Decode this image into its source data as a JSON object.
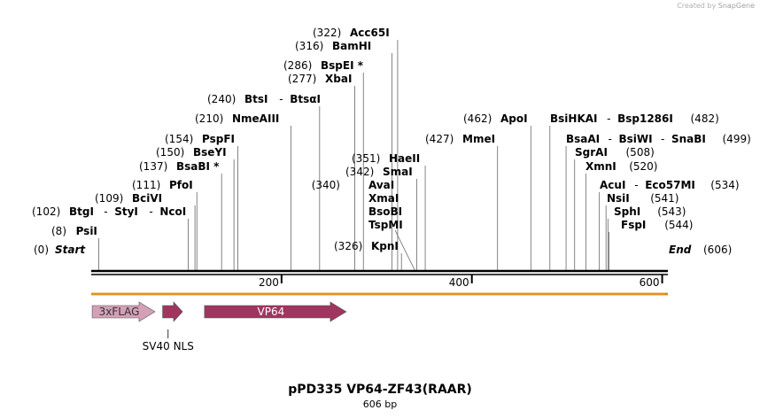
{
  "credit": {
    "prefix": "Created by",
    "brand": "SnapGene"
  },
  "title": "pPD335 VP64-ZF43(RAAR)",
  "subtitle": "606 bp",
  "sequence": {
    "start_label": "Start",
    "end_label": "End",
    "start_pos": "(0)",
    "end_pos": "(606)",
    "length": 606
  },
  "ticks": [
    {
      "value": 200,
      "label": "200"
    },
    {
      "value": 400,
      "label": "400"
    },
    {
      "value": 600,
      "label": "600"
    }
  ],
  "sites": [
    {
      "pos": 8,
      "pos_label": "(8)",
      "names": [
        "PsiI"
      ]
    },
    {
      "pos": 102,
      "pos_label": "(102)",
      "names": [
        "BtgI",
        "StyI",
        "NcoI"
      ]
    },
    {
      "pos": 109,
      "pos_label": "(109)",
      "names": [
        "BciVI"
      ]
    },
    {
      "pos": 111,
      "pos_label": "(111)",
      "names": [
        "PfoI"
      ]
    },
    {
      "pos": 137,
      "pos_label": "(137)",
      "names": [
        "BsaBI *"
      ]
    },
    {
      "pos": 150,
      "pos_label": "(150)",
      "names": [
        "BseYI"
      ]
    },
    {
      "pos": 154,
      "pos_label": "(154)",
      "names": [
        "PspFI"
      ]
    },
    {
      "pos": 210,
      "pos_label": "(210)",
      "names": [
        "NmeAIII"
      ]
    },
    {
      "pos": 240,
      "pos_label": "(240)",
      "names": [
        "BtsI",
        "BtsαI"
      ]
    },
    {
      "pos": 277,
      "pos_label": "(277)",
      "names": [
        "XbaI"
      ]
    },
    {
      "pos": 286,
      "pos_label": "(286)",
      "names": [
        "BspEI *"
      ]
    },
    {
      "pos": 316,
      "pos_label": "(316)",
      "names": [
        "BamHI"
      ]
    },
    {
      "pos": 322,
      "pos_label": "(322)",
      "names": [
        "Acc65I"
      ]
    },
    {
      "pos": 326,
      "pos_label": "(326)",
      "names": [
        "KpnI"
      ]
    },
    {
      "pos": 340,
      "pos_label": "(340)",
      "names": [
        "AvaI",
        "XmaI",
        "BsoBI",
        "TspMI"
      ]
    },
    {
      "pos": 342,
      "pos_label": "(342)",
      "names": [
        "SmaI"
      ]
    },
    {
      "pos": 351,
      "pos_label": "(351)",
      "names": [
        "HaeII"
      ]
    },
    {
      "pos": 427,
      "pos_label": "(427)",
      "names": [
        "MmeI"
      ]
    },
    {
      "pos": 462,
      "pos_label": "(462)",
      "names": [
        "ApoI"
      ]
    },
    {
      "pos": 482,
      "pos_label": "(482)",
      "names": [
        "BsiHKAI",
        "Bsp1286I"
      ]
    },
    {
      "pos": 499,
      "pos_label": "(499)",
      "names": [
        "BsaAI",
        "BsiWI",
        "SnaBI"
      ]
    },
    {
      "pos": 508,
      "pos_label": "(508)",
      "names": [
        "SgrAI"
      ]
    },
    {
      "pos": 520,
      "pos_label": "(520)",
      "names": [
        "XmnI"
      ]
    },
    {
      "pos": 534,
      "pos_label": "(534)",
      "names": [
        "AcuI",
        "Eco57MI"
      ]
    },
    {
      "pos": 541,
      "pos_label": "(541)",
      "names": [
        "NsiI"
      ]
    },
    {
      "pos": 543,
      "pos_label": "(543)",
      "names": [
        "SphI"
      ]
    },
    {
      "pos": 544,
      "pos_label": "(544)",
      "names": [
        "FspI"
      ]
    }
  ],
  "features": [
    {
      "name": "3xFLAG",
      "start": 1,
      "end": 67,
      "color": "#d4a0b8",
      "text_color": "#333333",
      "label_inside": true
    },
    {
      "name": "SV40 NLS",
      "start": 75,
      "end": 96,
      "color": "#a03560",
      "text_color": "#000000",
      "label_inside": false
    },
    {
      "name": "VP64",
      "start": 119,
      "end": 268,
      "color": "#a03560",
      "text_color": "#ffffff",
      "label_inside": true
    }
  ],
  "orf": {
    "start": 0,
    "end": 606,
    "color": "#f0a030"
  }
}
